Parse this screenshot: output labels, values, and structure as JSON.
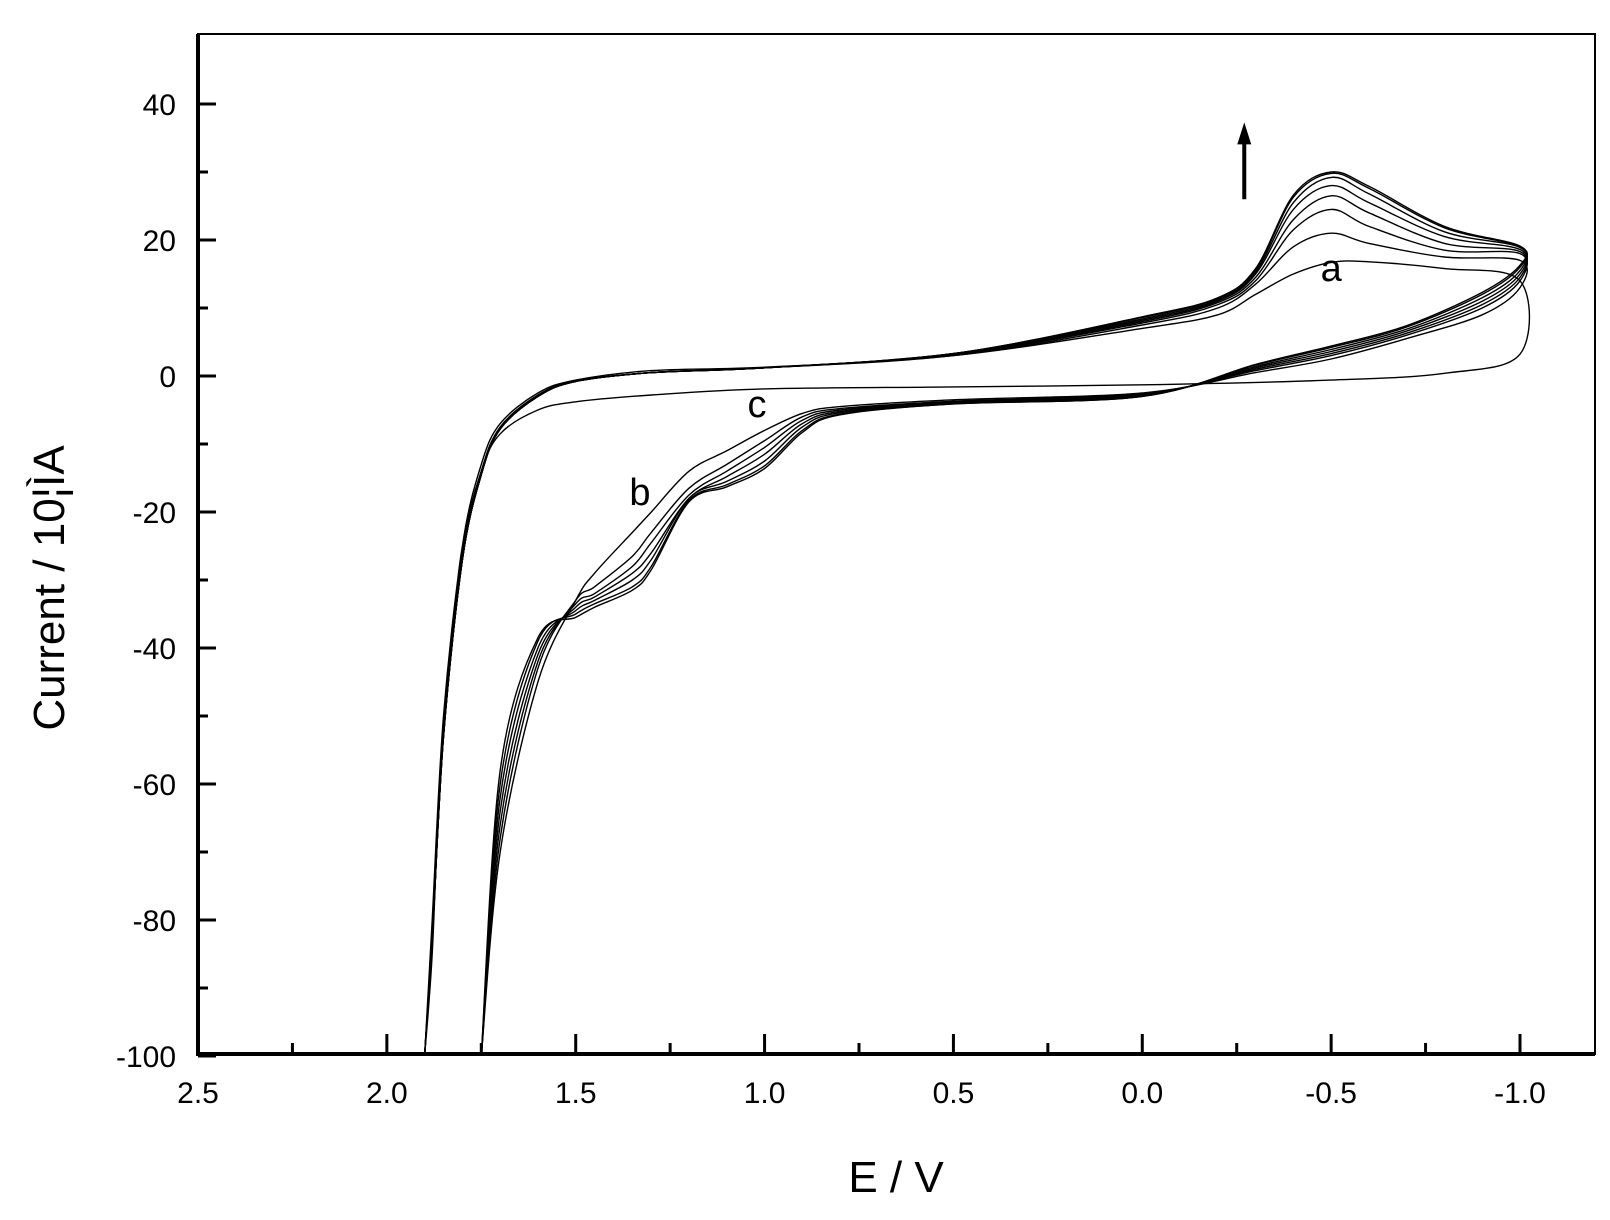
{
  "chart_data": {
    "type": "line",
    "title": "",
    "xlabel": "E / V",
    "ylabel": "Current / 10¦ÌA",
    "xlim": [
      2.5,
      -1.2
    ],
    "ylim": [
      -100,
      50
    ],
    "x_reversed": true,
    "x_ticks": [
      2.5,
      2.0,
      1.5,
      1.0,
      0.5,
      0.0,
      -0.5,
      -1.0
    ],
    "x_tick_labels": [
      "2.5",
      "2.0",
      "1.5",
      "1.0",
      "0.5",
      "0.0",
      "-0.5",
      "-1.0"
    ],
    "y_ticks": [
      40,
      20,
      0,
      -20,
      -40,
      -60,
      -80,
      -100
    ],
    "y_tick_labels": [
      "40",
      "20",
      "0",
      "-20",
      "-40",
      "-60",
      "-80",
      "-100"
    ],
    "grid": false,
    "annotations": [
      {
        "text": "a",
        "x": -0.5,
        "y": 14
      },
      {
        "text": "b",
        "x": 1.33,
        "y": -19
      },
      {
        "text": "c",
        "x": 1.02,
        "y": -6
      }
    ],
    "arrow": {
      "direction": "up",
      "x": -0.27,
      "y_from": 26,
      "y_to": 37
    },
    "series": [
      {
        "values": [
          [
            1.9,
            -100
          ],
          [
            1.88,
            -85
          ],
          [
            1.86,
            -60
          ],
          [
            1.83,
            -40
          ],
          [
            1.8,
            -25
          ],
          [
            1.75,
            -14
          ],
          [
            1.7,
            -8.5
          ],
          [
            1.6,
            -5
          ],
          [
            1.5,
            -3.8
          ],
          [
            1.3,
            -2.8
          ],
          [
            1.0,
            -1.9
          ],
          [
            0.5,
            -1.6
          ],
          [
            0.0,
            -1.3
          ],
          [
            -0.5,
            -0.6
          ],
          [
            -0.8,
            0.4
          ],
          [
            -1.0,
            3.2
          ],
          [
            -1.0,
            14
          ],
          [
            -0.8,
            15.8
          ],
          [
            -0.6,
            16.8
          ],
          [
            -0.5,
            16.7
          ],
          [
            -0.4,
            15
          ],
          [
            -0.3,
            12
          ],
          [
            -0.2,
            9
          ],
          [
            0.0,
            7
          ],
          [
            0.5,
            3
          ],
          [
            1.0,
            1.3
          ],
          [
            1.3,
            0.8
          ],
          [
            1.5,
            -0.6
          ],
          [
            1.6,
            -2.5
          ],
          [
            1.7,
            -7
          ],
          [
            1.75,
            -13
          ],
          [
            1.8,
            -25
          ],
          [
            1.85,
            -50
          ],
          [
            1.88,
            -80
          ],
          [
            1.9,
            -100
          ]
        ]
      },
      {
        "values": [
          [
            1.75,
            -100
          ],
          [
            1.7,
            -70
          ],
          [
            1.6,
            -45
          ],
          [
            1.5,
            -33
          ],
          [
            1.45,
            -29
          ],
          [
            1.35,
            -23
          ],
          [
            1.3,
            -20
          ],
          [
            1.2,
            -14
          ],
          [
            1.1,
            -11
          ],
          [
            1.0,
            -8
          ],
          [
            0.9,
            -5.5
          ],
          [
            0.8,
            -4.5
          ],
          [
            0.5,
            -3.5
          ],
          [
            0.0,
            -2.5
          ],
          [
            -0.3,
            0.5
          ],
          [
            -0.5,
            2.5
          ],
          [
            -0.7,
            5.5
          ],
          [
            -0.9,
            9
          ],
          [
            -1.0,
            13
          ],
          [
            -1.0,
            17
          ],
          [
            -0.8,
            17.5
          ],
          [
            -0.6,
            19.5
          ],
          [
            -0.5,
            21
          ],
          [
            -0.4,
            19
          ],
          [
            -0.3,
            13.5
          ],
          [
            -0.2,
            10
          ],
          [
            0.0,
            7.5
          ],
          [
            0.5,
            3
          ],
          [
            1.0,
            1.2
          ],
          [
            1.3,
            0.5
          ],
          [
            1.5,
            -0.7
          ],
          [
            1.6,
            -2.8
          ],
          [
            1.7,
            -7.5
          ],
          [
            1.75,
            -14
          ],
          [
            1.8,
            -26
          ],
          [
            1.85,
            -52
          ],
          [
            1.88,
            -82
          ],
          [
            1.9,
            -100
          ]
        ]
      },
      {
        "values": [
          [
            1.75,
            -100
          ],
          [
            1.7,
            -68
          ],
          [
            1.6,
            -43
          ],
          [
            1.5,
            -33
          ],
          [
            1.45,
            -31
          ],
          [
            1.35,
            -26.5
          ],
          [
            1.3,
            -23
          ],
          [
            1.2,
            -16.5
          ],
          [
            1.1,
            -13
          ],
          [
            1.0,
            -9.5
          ],
          [
            0.9,
            -6
          ],
          [
            0.8,
            -4.8
          ],
          [
            0.5,
            -3.7
          ],
          [
            0.0,
            -2.6
          ],
          [
            -0.3,
            0.8
          ],
          [
            -0.5,
            3
          ],
          [
            -0.7,
            6
          ],
          [
            -0.9,
            10
          ],
          [
            -1.0,
            14
          ],
          [
            -1.0,
            18
          ],
          [
            -0.8,
            18.5
          ],
          [
            -0.6,
            22
          ],
          [
            -0.5,
            24.5
          ],
          [
            -0.4,
            21.5
          ],
          [
            -0.3,
            14
          ],
          [
            -0.2,
            10.5
          ],
          [
            0.0,
            7.8
          ],
          [
            0.5,
            3.1
          ],
          [
            1.0,
            1.2
          ],
          [
            1.3,
            0.5
          ],
          [
            1.5,
            -0.8
          ],
          [
            1.6,
            -3
          ],
          [
            1.7,
            -7.8
          ],
          [
            1.75,
            -14.5
          ],
          [
            1.8,
            -27
          ],
          [
            1.85,
            -53
          ],
          [
            1.88,
            -83
          ],
          [
            1.9,
            -100
          ]
        ]
      },
      {
        "values": [
          [
            1.75,
            -100
          ],
          [
            1.7,
            -66
          ],
          [
            1.6,
            -42
          ],
          [
            1.5,
            -33.5
          ],
          [
            1.45,
            -32
          ],
          [
            1.35,
            -28
          ],
          [
            1.3,
            -24.5
          ],
          [
            1.2,
            -17.5
          ],
          [
            1.1,
            -14
          ],
          [
            1.0,
            -10.5
          ],
          [
            0.9,
            -6.5
          ],
          [
            0.8,
            -5
          ],
          [
            0.5,
            -3.8
          ],
          [
            0.0,
            -2.7
          ],
          [
            -0.3,
            1
          ],
          [
            -0.5,
            3.3
          ],
          [
            -0.7,
            6.3
          ],
          [
            -0.9,
            10.5
          ],
          [
            -1.0,
            14.5
          ],
          [
            -1.0,
            18.3
          ],
          [
            -0.8,
            19.5
          ],
          [
            -0.6,
            24
          ],
          [
            -0.5,
            26.5
          ],
          [
            -0.4,
            23
          ],
          [
            -0.3,
            14.5
          ],
          [
            -0.2,
            10.8
          ],
          [
            0.0,
            8
          ],
          [
            0.5,
            3.2
          ],
          [
            1.0,
            1.2
          ],
          [
            1.3,
            0.5
          ],
          [
            1.5,
            -0.8
          ],
          [
            1.6,
            -3
          ],
          [
            1.7,
            -7.8
          ],
          [
            1.75,
            -14.5
          ],
          [
            1.8,
            -27
          ],
          [
            1.85,
            -53
          ],
          [
            1.88,
            -83
          ],
          [
            1.9,
            -100
          ]
        ]
      },
      {
        "values": [
          [
            1.75,
            -100
          ],
          [
            1.7,
            -64
          ],
          [
            1.6,
            -41
          ],
          [
            1.5,
            -34
          ],
          [
            1.45,
            -32.5
          ],
          [
            1.35,
            -29
          ],
          [
            1.3,
            -26
          ],
          [
            1.2,
            -18
          ],
          [
            1.1,
            -14.8
          ],
          [
            1.0,
            -11.5
          ],
          [
            0.9,
            -7
          ],
          [
            0.8,
            -5.2
          ],
          [
            0.5,
            -3.9
          ],
          [
            0.0,
            -2.8
          ],
          [
            -0.3,
            1.2
          ],
          [
            -0.5,
            3.6
          ],
          [
            -0.7,
            6.6
          ],
          [
            -0.9,
            11
          ],
          [
            -1.0,
            15
          ],
          [
            -1.0,
            18.6
          ],
          [
            -0.8,
            20.5
          ],
          [
            -0.6,
            25.5
          ],
          [
            -0.5,
            28
          ],
          [
            -0.4,
            24.5
          ],
          [
            -0.3,
            15
          ],
          [
            -0.2,
            11
          ],
          [
            0.0,
            8.2
          ],
          [
            0.5,
            3.3
          ],
          [
            1.0,
            1.2
          ],
          [
            1.3,
            0.5
          ],
          [
            1.5,
            -0.8
          ],
          [
            1.6,
            -3
          ],
          [
            1.7,
            -7.8
          ],
          [
            1.75,
            -14.5
          ],
          [
            1.8,
            -27
          ],
          [
            1.85,
            -53
          ],
          [
            1.88,
            -83
          ],
          [
            1.9,
            -100
          ]
        ]
      },
      {
        "values": [
          [
            1.75,
            -100
          ],
          [
            1.7,
            -62
          ],
          [
            1.6,
            -40
          ],
          [
            1.5,
            -34.5
          ],
          [
            1.45,
            -33
          ],
          [
            1.35,
            -30
          ],
          [
            1.3,
            -27
          ],
          [
            1.2,
            -18
          ],
          [
            1.1,
            -15.5
          ],
          [
            1.0,
            -12.5
          ],
          [
            0.9,
            -7.5
          ],
          [
            0.8,
            -5.4
          ],
          [
            0.5,
            -4
          ],
          [
            0.0,
            -2.9
          ],
          [
            -0.3,
            1.4
          ],
          [
            -0.5,
            3.9
          ],
          [
            -0.7,
            6.9
          ],
          [
            -0.9,
            11.5
          ],
          [
            -1.0,
            15.5
          ],
          [
            -1.0,
            18.9
          ],
          [
            -0.8,
            21.2
          ],
          [
            -0.6,
            26.8
          ],
          [
            -0.5,
            29.2
          ],
          [
            -0.4,
            25.5
          ],
          [
            -0.3,
            15.3
          ],
          [
            -0.2,
            11.2
          ],
          [
            0.0,
            8.4
          ],
          [
            0.5,
            3.3
          ],
          [
            1.0,
            1.2
          ],
          [
            1.3,
            0.5
          ],
          [
            1.5,
            -0.8
          ],
          [
            1.6,
            -3
          ],
          [
            1.7,
            -7.8
          ],
          [
            1.75,
            -14.5
          ],
          [
            1.8,
            -27
          ],
          [
            1.85,
            -53
          ],
          [
            1.88,
            -83
          ],
          [
            1.9,
            -100
          ]
        ]
      },
      {
        "values": [
          [
            1.75,
            -100
          ],
          [
            1.7,
            -60
          ],
          [
            1.6,
            -39
          ],
          [
            1.5,
            -35
          ],
          [
            1.45,
            -33.5
          ],
          [
            1.35,
            -31
          ],
          [
            1.3,
            -28
          ],
          [
            1.2,
            -18.3
          ],
          [
            1.1,
            -16
          ],
          [
            1.0,
            -13.2
          ],
          [
            0.9,
            -8
          ],
          [
            0.8,
            -5.6
          ],
          [
            0.5,
            -4.1
          ],
          [
            0.0,
            -3
          ],
          [
            -0.3,
            1.6
          ],
          [
            -0.5,
            4.2
          ],
          [
            -0.7,
            7.2
          ],
          [
            -0.9,
            12
          ],
          [
            -1.0,
            16
          ],
          [
            -1.0,
            19
          ],
          [
            -0.8,
            21.8
          ],
          [
            -0.6,
            27.6
          ],
          [
            -0.5,
            29.8
          ],
          [
            -0.4,
            26.3
          ],
          [
            -0.3,
            15.6
          ],
          [
            -0.2,
            11.4
          ],
          [
            0.0,
            8.6
          ],
          [
            0.5,
            3.3
          ],
          [
            1.0,
            1.2
          ],
          [
            1.3,
            0.5
          ],
          [
            1.5,
            -0.8
          ],
          [
            1.6,
            -3
          ],
          [
            1.7,
            -7.8
          ],
          [
            1.75,
            -14.5
          ],
          [
            1.8,
            -27
          ],
          [
            1.85,
            -53
          ],
          [
            1.88,
            -83
          ],
          [
            1.9,
            -100
          ]
        ]
      },
      {
        "values": [
          [
            1.75,
            -100
          ],
          [
            1.7,
            -58
          ],
          [
            1.6,
            -38.5
          ],
          [
            1.5,
            -35.5
          ],
          [
            1.45,
            -34
          ],
          [
            1.35,
            -31.5
          ],
          [
            1.3,
            -28.5
          ],
          [
            1.2,
            -18.5
          ],
          [
            1.1,
            -16.3
          ],
          [
            1.0,
            -13.6
          ],
          [
            0.9,
            -8.3
          ],
          [
            0.8,
            -5.7
          ],
          [
            0.5,
            -4.1
          ],
          [
            0.0,
            -3
          ],
          [
            -0.3,
            1.7
          ],
          [
            -0.5,
            4.4
          ],
          [
            -0.7,
            7.4
          ],
          [
            -0.9,
            12.3
          ],
          [
            -1.0,
            16.3
          ],
          [
            -1.0,
            19.1
          ],
          [
            -0.8,
            22
          ],
          [
            -0.6,
            27.9
          ],
          [
            -0.5,
            30
          ],
          [
            -0.4,
            26.6
          ],
          [
            -0.3,
            15.8
          ],
          [
            -0.2,
            11.5
          ],
          [
            0.0,
            8.7
          ],
          [
            0.5,
            3.3
          ],
          [
            1.0,
            1.2
          ],
          [
            1.3,
            0.5
          ],
          [
            1.5,
            -0.8
          ],
          [
            1.6,
            -3
          ],
          [
            1.7,
            -7.8
          ],
          [
            1.75,
            -14.5
          ],
          [
            1.8,
            -27
          ],
          [
            1.85,
            -53
          ],
          [
            1.88,
            -83
          ],
          [
            1.9,
            -100
          ]
        ]
      }
    ]
  }
}
